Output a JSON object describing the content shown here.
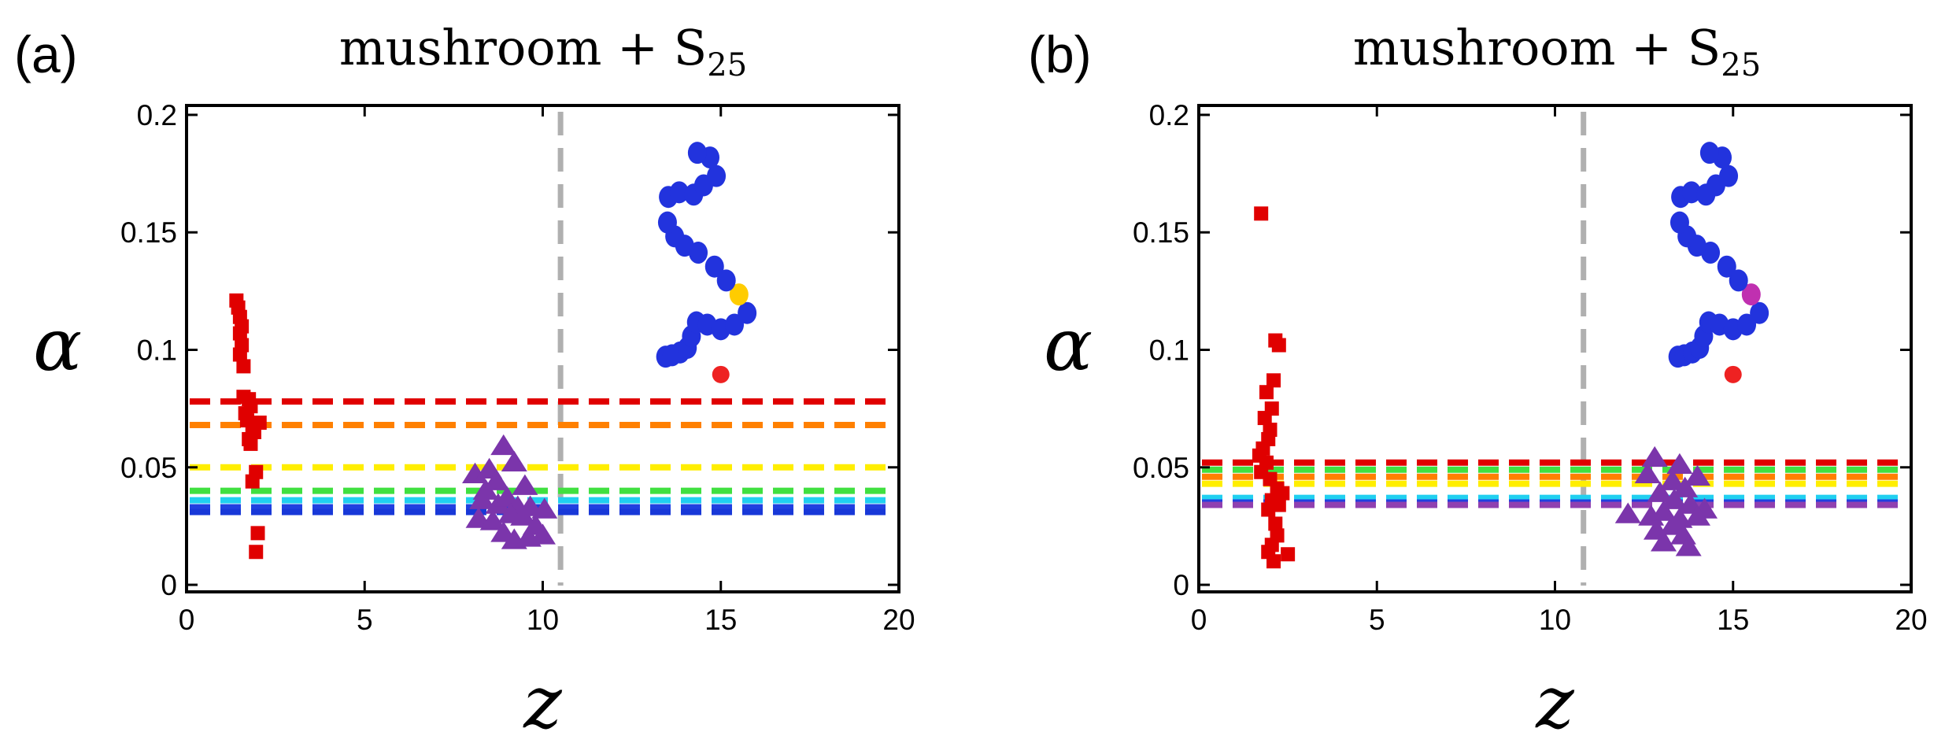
{
  "chart_data": [
    {
      "panel_label": "(a)",
      "type": "scatter",
      "title": "mushroom + S",
      "title_subscript": "25",
      "xlabel": "z",
      "ylabel": "α",
      "xlim": [
        0,
        20
      ],
      "ylim": [
        -0.003,
        0.204
      ],
      "x_ticks": [
        0,
        5,
        10,
        15,
        20
      ],
      "y_ticks": [
        0,
        0.05,
        0.1,
        0.15,
        0.2
      ],
      "x_tick_labels": [
        "0",
        "5",
        "10",
        "15",
        "20"
      ],
      "y_tick_labels": [
        "0",
        "0.05",
        "0.1",
        "0.15",
        "0.2"
      ],
      "grid": false,
      "legend": "none",
      "divider_x": 10.5,
      "reference_lines": [
        {
          "y": 0.078,
          "color": "#e00000"
        },
        {
          "y": 0.068,
          "color": "#ff8000"
        },
        {
          "y": 0.05,
          "color": "#ffee00"
        },
        {
          "y": 0.04,
          "color": "#40e040"
        },
        {
          "y": 0.036,
          "color": "#20d0f0"
        },
        {
          "y": 0.033,
          "color": "#2040e0"
        },
        {
          "y": 0.031,
          "color": "#1838d8"
        }
      ],
      "series": [
        {
          "marker": "square",
          "color": "#e00000",
          "points": [
            [
              1.4,
              0.121
            ],
            [
              1.45,
              0.118
            ],
            [
              1.5,
              0.114
            ],
            [
              1.55,
              0.11
            ],
            [
              1.5,
              0.107
            ],
            [
              1.55,
              0.102
            ],
            [
              1.5,
              0.098
            ],
            [
              1.6,
              0.093
            ],
            [
              1.6,
              0.08
            ],
            [
              1.75,
              0.079
            ],
            [
              1.8,
              0.076
            ],
            [
              1.65,
              0.073
            ],
            [
              1.7,
              0.07
            ],
            [
              2.05,
              0.069
            ],
            [
              1.85,
              0.067
            ],
            [
              1.9,
              0.065
            ],
            [
              1.75,
              0.062
            ],
            [
              1.8,
              0.06
            ],
            [
              1.95,
              0.048
            ],
            [
              1.85,
              0.044
            ],
            [
              2.0,
              0.022
            ],
            [
              1.95,
              0.014
            ]
          ]
        },
        {
          "marker": "triangle",
          "color": "#7b35ab",
          "points": [
            [
              8.1,
              0.047
            ],
            [
              8.5,
              0.049
            ],
            [
              8.9,
              0.059
            ],
            [
              9.2,
              0.052
            ],
            [
              8.4,
              0.04
            ],
            [
              8.7,
              0.044
            ],
            [
              9.5,
              0.042
            ],
            [
              8.3,
              0.036
            ],
            [
              8.75,
              0.034
            ],
            [
              9.0,
              0.037
            ],
            [
              9.3,
              0.033
            ],
            [
              9.65,
              0.033
            ],
            [
              10.05,
              0.032
            ],
            [
              8.2,
              0.028
            ],
            [
              8.6,
              0.027
            ],
            [
              9.1,
              0.03
            ],
            [
              9.45,
              0.029
            ],
            [
              9.8,
              0.025
            ],
            [
              8.9,
              0.022
            ],
            [
              9.2,
              0.019
            ],
            [
              9.6,
              0.02
            ],
            [
              10.0,
              0.021
            ]
          ]
        }
      ],
      "inset": {
        "blue_color": "#2233dd",
        "special_color": "#ffcc00",
        "tail_color": "#ee2222"
      }
    },
    {
      "panel_label": "(b)",
      "type": "scatter",
      "title": "mushroom + S",
      "title_subscript": "25",
      "xlabel": "z",
      "ylabel": "α",
      "xlim": [
        0,
        20
      ],
      "ylim": [
        -0.003,
        0.204
      ],
      "x_ticks": [
        0,
        5,
        10,
        15,
        20
      ],
      "y_ticks": [
        0,
        0.05,
        0.1,
        0.15,
        0.2
      ],
      "x_tick_labels": [
        "0",
        "5",
        "10",
        "15",
        "20"
      ],
      "y_tick_labels": [
        "0",
        "0.05",
        "0.1",
        "0.15",
        "0.2"
      ],
      "grid": false,
      "legend": "none",
      "divider_x": 10.8,
      "reference_lines": [
        {
          "y": 0.052,
          "color": "#e00000"
        },
        {
          "y": 0.049,
          "color": "#40e040"
        },
        {
          "y": 0.046,
          "color": "#ff8000"
        },
        {
          "y": 0.043,
          "color": "#ffee00"
        },
        {
          "y": 0.037,
          "color": "#20d0f0"
        },
        {
          "y": 0.035,
          "color": "#2040e0"
        },
        {
          "y": 0.034,
          "color": "#9040b0"
        }
      ],
      "series": [
        {
          "marker": "square",
          "color": "#e00000",
          "points": [
            [
              1.75,
              0.158
            ],
            [
              2.15,
              0.104
            ],
            [
              2.25,
              0.102
            ],
            [
              2.1,
              0.087
            ],
            [
              1.9,
              0.082
            ],
            [
              2.05,
              0.075
            ],
            [
              1.85,
              0.071
            ],
            [
              2.0,
              0.066
            ],
            [
              1.95,
              0.062
            ],
            [
              1.8,
              0.058
            ],
            [
              1.7,
              0.055
            ],
            [
              1.9,
              0.052
            ],
            [
              1.75,
              0.048
            ],
            [
              2.0,
              0.045
            ],
            [
              2.2,
              0.041
            ],
            [
              2.35,
              0.039
            ],
            [
              2.05,
              0.036
            ],
            [
              2.25,
              0.034
            ],
            [
              1.95,
              0.032
            ],
            [
              2.15,
              0.026
            ],
            [
              2.2,
              0.021
            ],
            [
              2.05,
              0.017
            ],
            [
              1.95,
              0.014
            ],
            [
              2.5,
              0.013
            ],
            [
              2.1,
              0.01
            ]
          ]
        },
        {
          "marker": "triangle",
          "color": "#7b35ab",
          "points": [
            [
              12.8,
              0.054
            ],
            [
              13.5,
              0.051
            ],
            [
              12.6,
              0.047
            ],
            [
              14.0,
              0.046
            ],
            [
              13.3,
              0.044
            ],
            [
              13.65,
              0.041
            ],
            [
              12.95,
              0.039
            ],
            [
              13.35,
              0.036
            ],
            [
              13.8,
              0.034
            ],
            [
              14.2,
              0.032
            ],
            [
              12.05,
              0.03
            ],
            [
              12.7,
              0.029
            ],
            [
              13.05,
              0.031
            ],
            [
              13.5,
              0.028
            ],
            [
              14.0,
              0.029
            ],
            [
              12.85,
              0.023
            ],
            [
              13.3,
              0.025
            ],
            [
              13.6,
              0.021
            ],
            [
              13.05,
              0.018
            ],
            [
              13.75,
              0.016
            ]
          ]
        }
      ],
      "inset": {
        "blue_color": "#2233dd",
        "special_color": "#c030b0",
        "tail_color": "#ee2222"
      }
    }
  ]
}
